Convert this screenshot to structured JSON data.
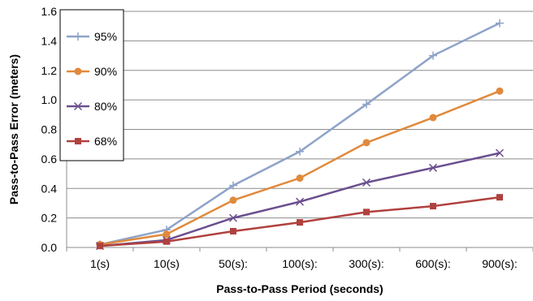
{
  "chart_data": {
    "type": "line",
    "categories": [
      "1(s)",
      "10(s)",
      "50(s):",
      "100(s):",
      "300(s):",
      "600(s):",
      "900(s):"
    ],
    "series": [
      {
        "name": "95%",
        "values": [
          0.02,
          0.12,
          0.42,
          0.65,
          0.97,
          1.3,
          1.52
        ],
        "color": "#8ea3c9",
        "marker": "plus"
      },
      {
        "name": "90%",
        "values": [
          0.02,
          0.09,
          0.32,
          0.47,
          0.71,
          0.88,
          1.06
        ],
        "color": "#e08a3c",
        "marker": "circle"
      },
      {
        "name": "80%",
        "values": [
          0.01,
          0.05,
          0.2,
          0.31,
          0.44,
          0.54,
          0.64
        ],
        "color": "#6b4f8f",
        "marker": "x"
      },
      {
        "name": "68%",
        "values": [
          0.01,
          0.04,
          0.11,
          0.17,
          0.24,
          0.28,
          0.34
        ],
        "color": "#b0413e",
        "marker": "square"
      }
    ],
    "xlabel": "Pass-to-Pass Period (seconds)",
    "ylabel": "Pass-to-Pass Error (meters)",
    "ylim": [
      0,
      1.6
    ],
    "yticks": [
      "0.0",
      "0.2",
      "0.4",
      "0.6",
      "0.8",
      "1.0",
      "1.2",
      "1.4",
      "1.6"
    ],
    "grid": "horizontal",
    "legend": "top-left"
  }
}
